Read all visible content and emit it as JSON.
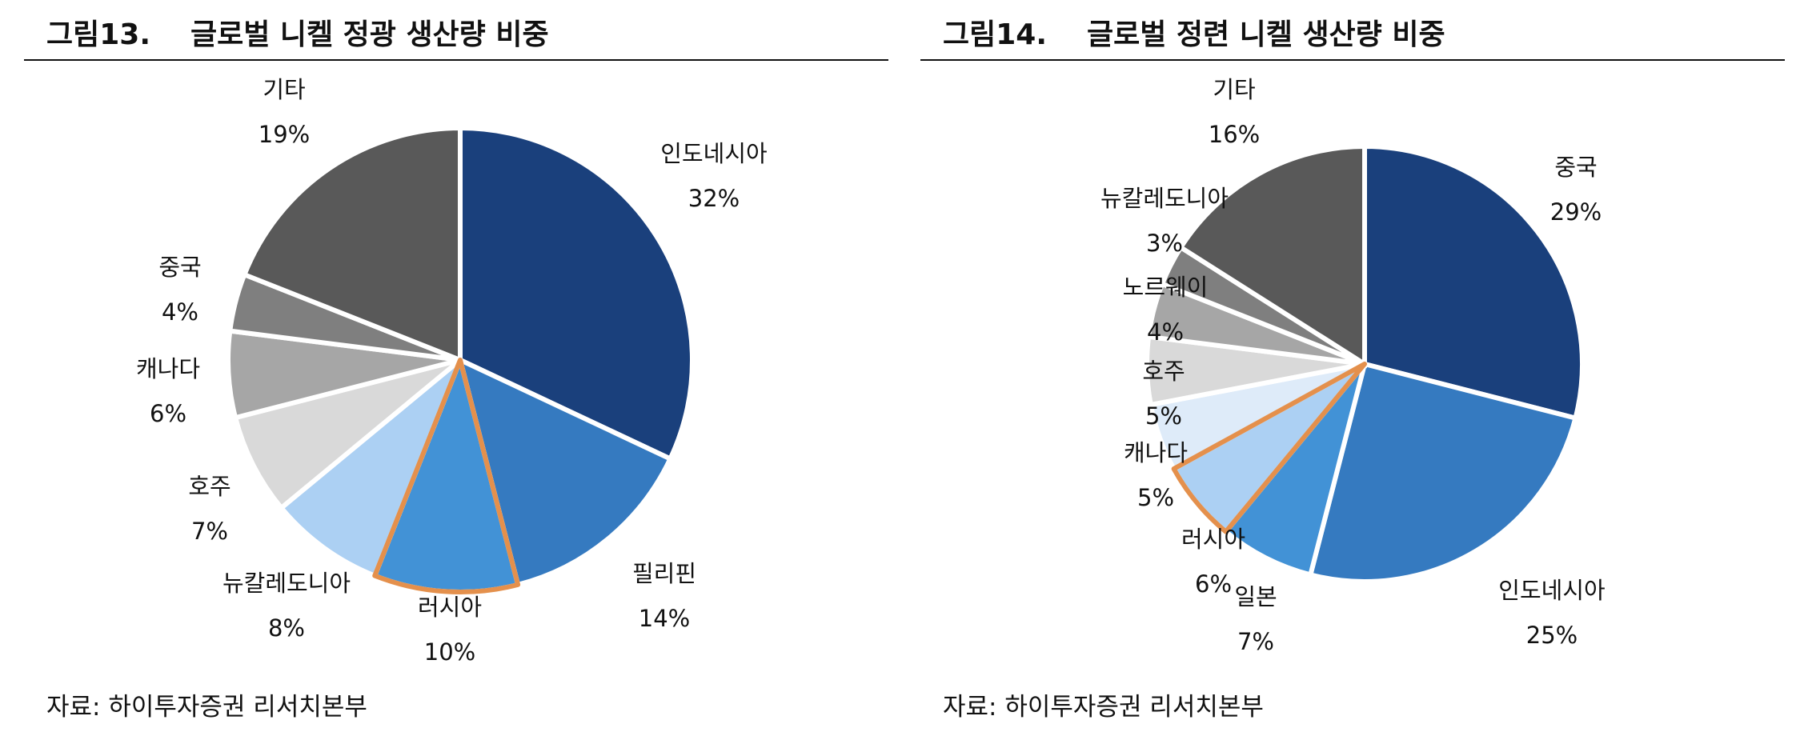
{
  "charts": [
    {
      "figure_no": "그림13.",
      "title": "글로벌 니켈 정광 생산량 비중",
      "source": "자료: 하이투자증권 리서치본부"
    },
    {
      "figure_no": "그림14.",
      "title": "글로벌 정련 니켈 생산량 비중",
      "source": "자료: 하이투자증권 리서치본부"
    }
  ],
  "chart_data": [
    {
      "type": "pie",
      "title": "글로벌 니켈 정광 생산량 비중",
      "start": "12 o'clock, clockwise",
      "highlighted": "러시아",
      "slices": [
        {
          "label": "인도네시아",
          "value": 32,
          "value_label": "32%",
          "color": "#1a407c"
        },
        {
          "label": "필리핀",
          "value": 14,
          "value_label": "14%",
          "color": "#357ac0"
        },
        {
          "label": "러시아",
          "value": 10,
          "value_label": "10%",
          "color": "#4292d6",
          "highlight_color": "#e4904c"
        },
        {
          "label": "뉴칼레도니아",
          "value": 8,
          "value_label": "8%",
          "color": "#acd0f3"
        },
        {
          "label": "호주",
          "value": 7,
          "value_label": "7%",
          "color": "#d9d9d9"
        },
        {
          "label": "캐나다",
          "value": 6,
          "value_label": "6%",
          "color": "#a6a6a6"
        },
        {
          "label": "중국",
          "value": 4,
          "value_label": "4%",
          "color": "#7f7f7f"
        },
        {
          "label": "기타",
          "value": 19,
          "value_label": "19%",
          "color": "#595959"
        }
      ]
    },
    {
      "type": "pie",
      "title": "글로벌 정련 니켈 생산량 비중",
      "start": "12 o'clock, clockwise",
      "highlighted": "러시아",
      "slices": [
        {
          "label": "중국",
          "value": 29,
          "value_label": "29%",
          "color": "#1a407c"
        },
        {
          "label": "인도네시아",
          "value": 25,
          "value_label": "25%",
          "color": "#357ac0"
        },
        {
          "label": "일본",
          "value": 7,
          "value_label": "7%",
          "color": "#4292d6"
        },
        {
          "label": "러시아",
          "value": 6,
          "value_label": "6%",
          "color": "#acd0f3",
          "highlight_color": "#e4904c"
        },
        {
          "label": "캐나다",
          "value": 5,
          "value_label": "5%",
          "color": "#deebf9"
        },
        {
          "label": "호주",
          "value": 5,
          "value_label": "5%",
          "color": "#d9d9d9"
        },
        {
          "label": "노르웨이",
          "value": 4,
          "value_label": "4%",
          "color": "#a6a6a6"
        },
        {
          "label": "뉴칼레도니아",
          "value": 3,
          "value_label": "3%",
          "color": "#7f7f7f"
        },
        {
          "label": "기타",
          "value": 16,
          "value_label": "16%",
          "color": "#595959"
        }
      ]
    }
  ]
}
